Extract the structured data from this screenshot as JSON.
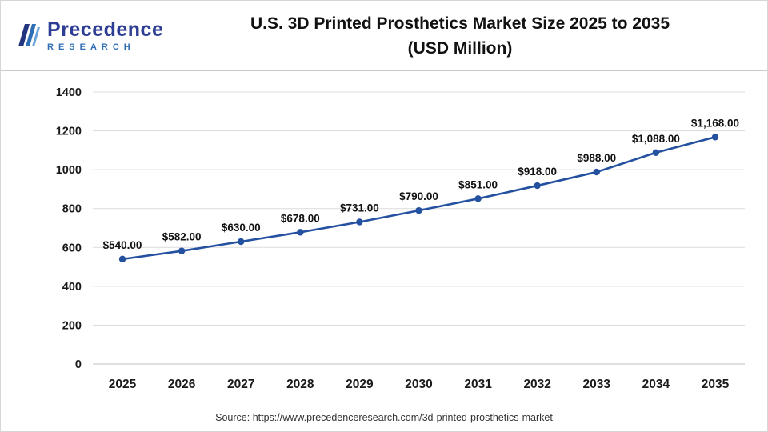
{
  "header": {
    "logo": {
      "name": "Precedence",
      "sub": "RESEARCH"
    },
    "title_line1": "U.S. 3D Printed Prosthetics Market Size 2025 to 2035",
    "title_line2": "(USD Million)"
  },
  "chart_data": {
    "type": "line",
    "title": "U.S. 3D Printed Prosthetics Market Size 2025 to 2035 (USD Million)",
    "categories": [
      "2025",
      "2026",
      "2027",
      "2028",
      "2029",
      "2030",
      "2031",
      "2032",
      "2033",
      "2034",
      "2035"
    ],
    "values": [
      540,
      582,
      630,
      678,
      731,
      790,
      851,
      918,
      988,
      1088,
      1168
    ],
    "labels": [
      "$540.00",
      "$582.00",
      "$630.00",
      "$678.00",
      "$731.00",
      "$790.00",
      "$851.00",
      "$918.00",
      "$988.00",
      "$1,088.00",
      "$1,168.00"
    ],
    "xlabel": "",
    "ylabel": "",
    "ylim": [
      0,
      1400
    ],
    "ytick_step": 200,
    "grid": true,
    "legend": "none",
    "line_color": "#2450a0"
  },
  "footer": {
    "source": "Source: https://www.precedenceresearch.com/3d-printed-prosthetics-market"
  }
}
